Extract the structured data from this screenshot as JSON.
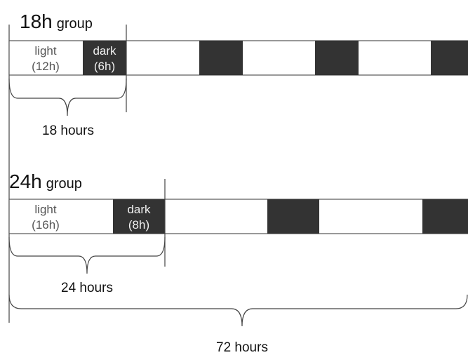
{
  "groups": [
    {
      "title": "18h",
      "subtitle": "group",
      "light_label": [
        "light",
        "(12h)"
      ],
      "dark_label": [
        "dark",
        "(6h)"
      ],
      "brace_label": "18 hours"
    },
    {
      "title": "24h",
      "subtitle": "group",
      "light_label": [
        "light",
        "(16h)"
      ],
      "dark_label": [
        "dark",
        "(8h)"
      ],
      "brace_label": "24 hours"
    }
  ],
  "total_label": "72 hours"
}
